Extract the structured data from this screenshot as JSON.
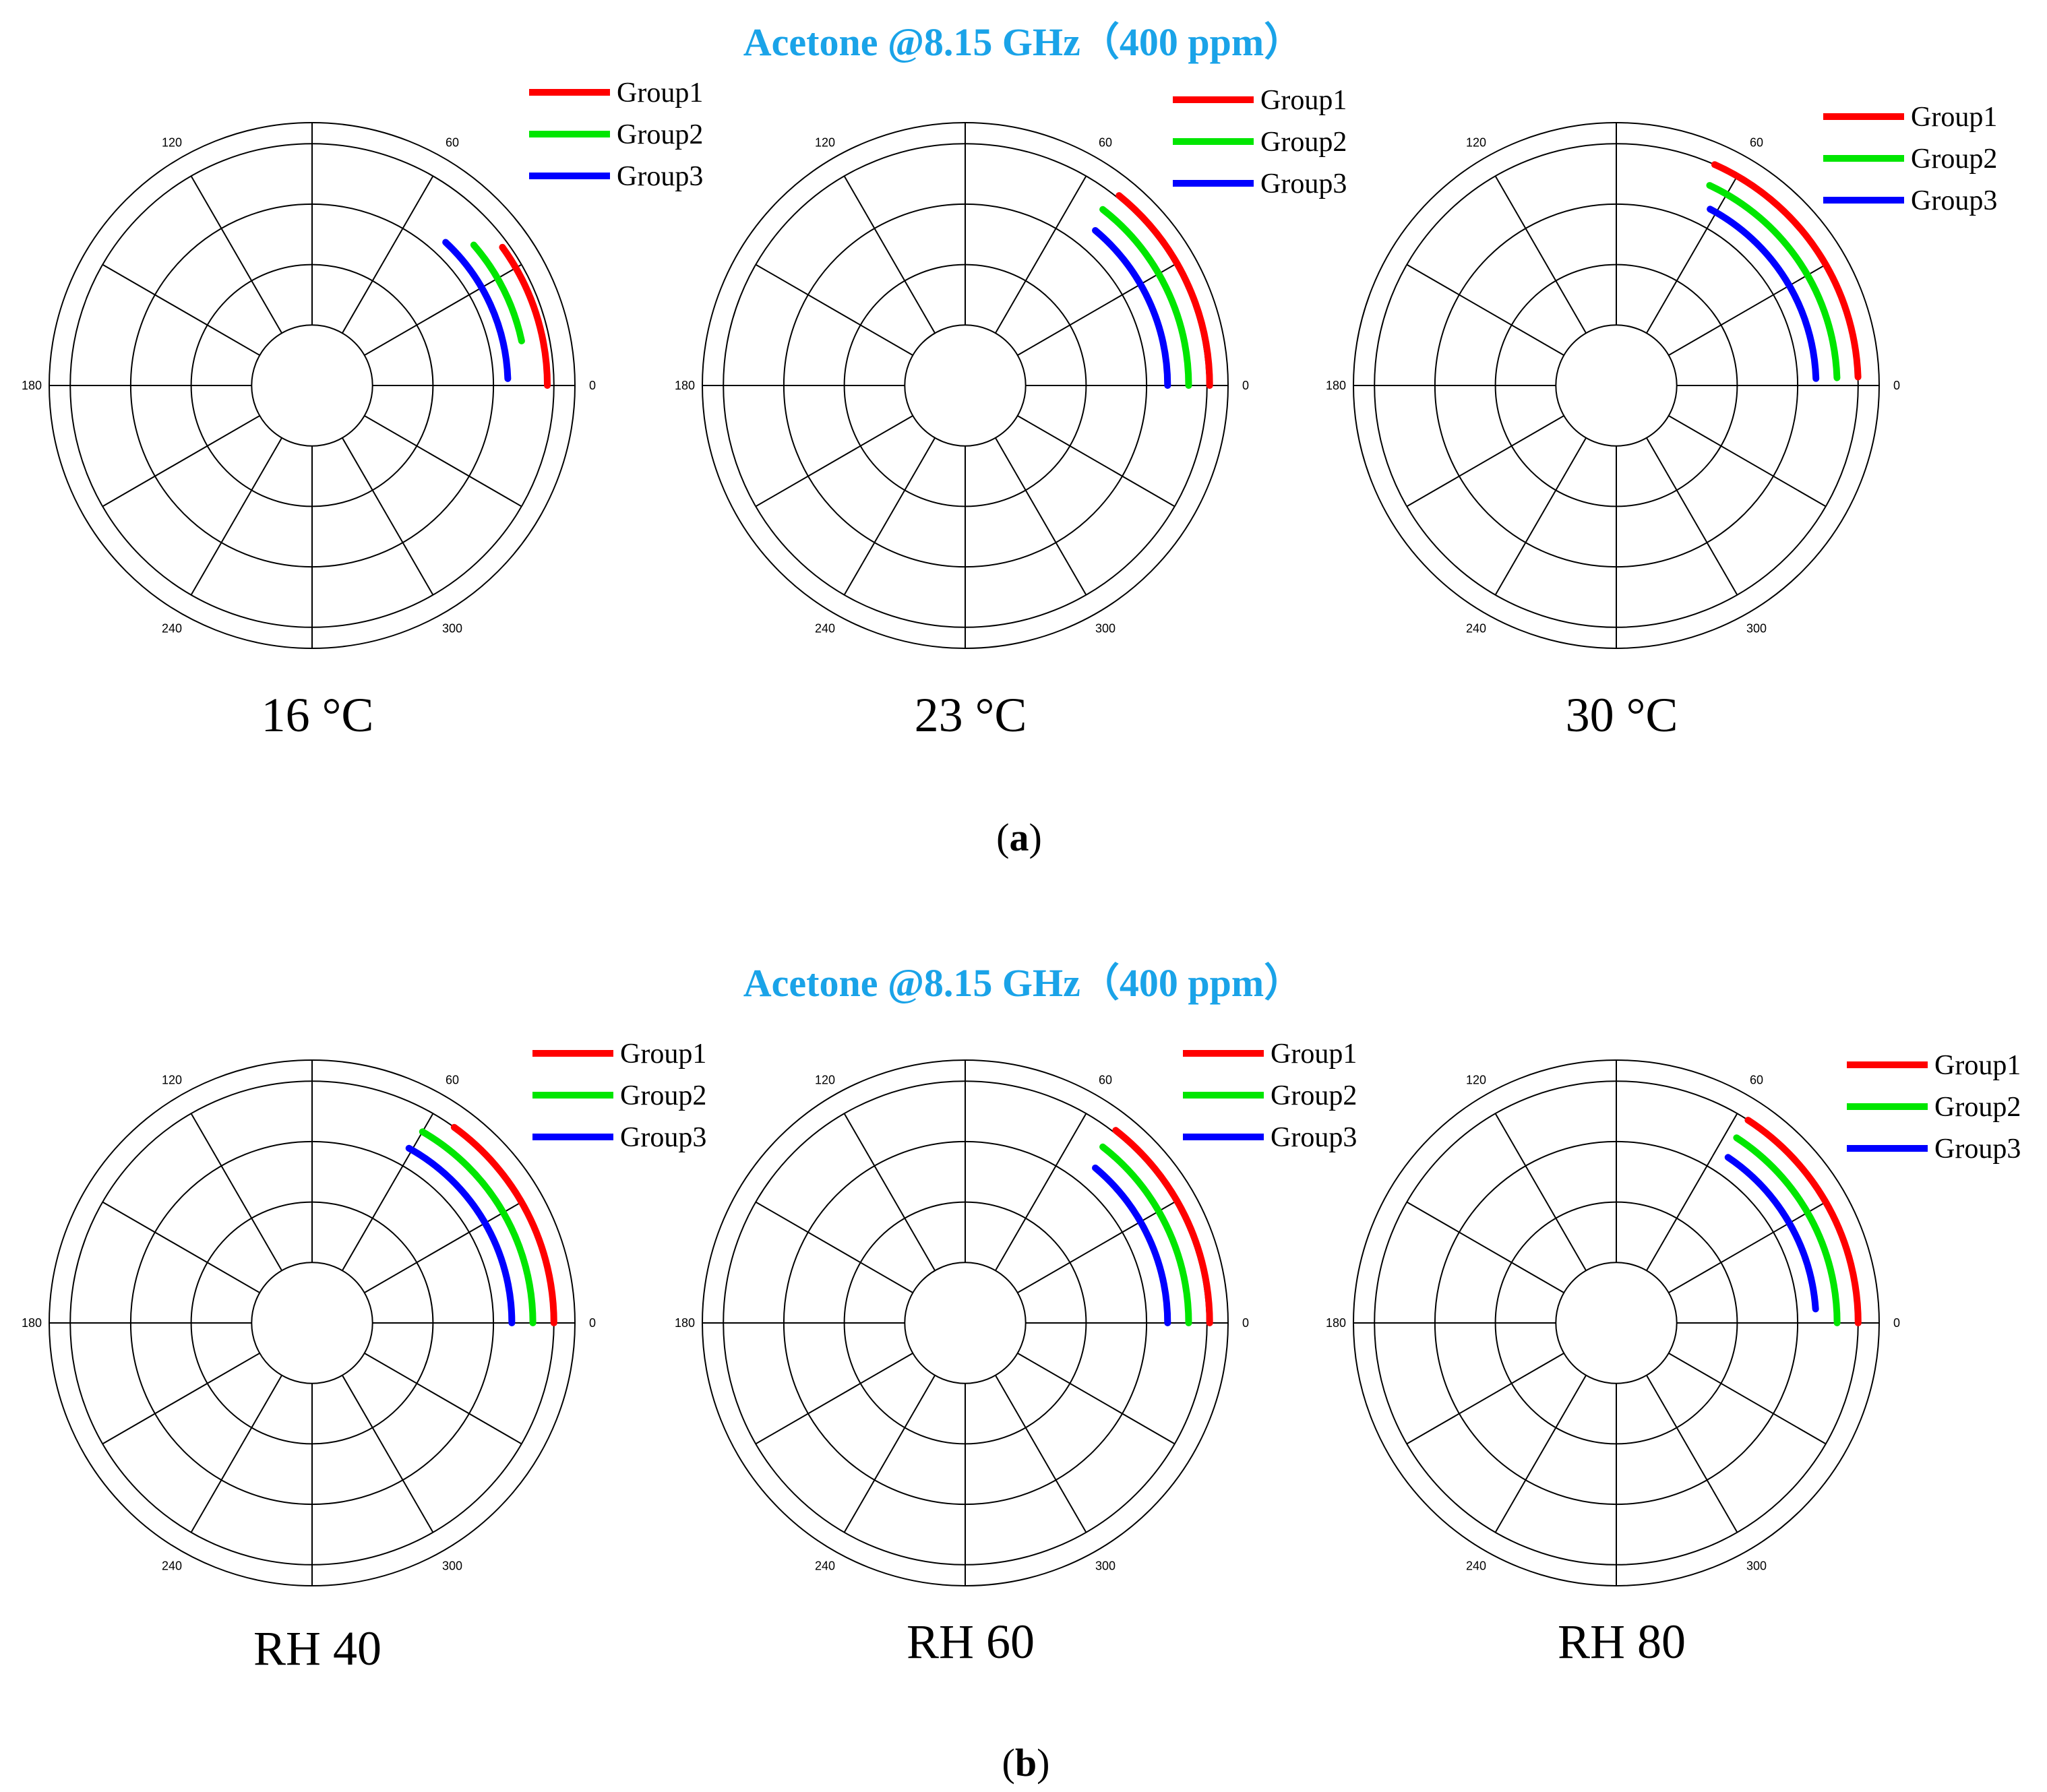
{
  "figure": {
    "title_a": "Acetone @8.15 GHz（400 ppm）",
    "title_b": "Acetone @8.15 GHz（400 ppm）",
    "caption_a": {
      "open": "(",
      "letter": "a",
      "close": ")"
    },
    "caption_b": {
      "open": "(",
      "letter": "b",
      "close": ")"
    }
  },
  "colors": {
    "group1": "#ff0000",
    "group2": "#00e600",
    "group3": "#0000ff",
    "title": "#1aa3e8",
    "grid": "#000000"
  },
  "chart_data": [
    {
      "type": "polar",
      "label": "16 °C",
      "angle_ticks": [
        "0",
        "60",
        "120",
        "180",
        "240",
        "300"
      ],
      "radial_range": [
        0,
        1
      ],
      "series": [
        {
          "name": "Group1",
          "r": 0.895,
          "theta_start": 0,
          "theta_end": 36
        },
        {
          "name": "Group2",
          "r": 0.815,
          "theta_start": 12,
          "theta_end": 41
        },
        {
          "name": "Group3",
          "r": 0.745,
          "theta_start": 2,
          "theta_end": 47
        }
      ]
    },
    {
      "type": "polar",
      "label": "23 °C",
      "angle_ticks": [
        "0",
        "60",
        "120",
        "180",
        "240",
        "300"
      ],
      "radial_range": [
        0,
        1
      ],
      "series": [
        {
          "name": "Group1",
          "r": 0.93,
          "theta_start": 0,
          "theta_end": 51
        },
        {
          "name": "Group2",
          "r": 0.85,
          "theta_start": 0,
          "theta_end": 52
        },
        {
          "name": "Group3",
          "r": 0.77,
          "theta_start": 0,
          "theta_end": 50
        }
      ]
    },
    {
      "type": "polar",
      "label": "30 °C",
      "angle_ticks": [
        "0",
        "60",
        "120",
        "180",
        "240",
        "300"
      ],
      "radial_range": [
        0,
        1
      ],
      "series": [
        {
          "name": "Group1",
          "r": 0.92,
          "theta_start": 2,
          "theta_end": 66
        },
        {
          "name": "Group2",
          "r": 0.84,
          "theta_start": 2,
          "theta_end": 65
        },
        {
          "name": "Group3",
          "r": 0.76,
          "theta_start": 2,
          "theta_end": 62
        }
      ]
    },
    {
      "type": "polar",
      "label": "RH 40",
      "angle_ticks": [
        "0",
        "60",
        "120",
        "180",
        "240",
        "300"
      ],
      "radial_range": [
        0,
        1
      ],
      "series": [
        {
          "name": "Group1",
          "r": 0.92,
          "theta_start": 0,
          "theta_end": 54
        },
        {
          "name": "Group2",
          "r": 0.84,
          "theta_start": 0,
          "theta_end": 60
        },
        {
          "name": "Group3",
          "r": 0.76,
          "theta_start": 0,
          "theta_end": 61
        }
      ]
    },
    {
      "type": "polar",
      "label": "RH 60",
      "angle_ticks": [
        "0",
        "60",
        "120",
        "180",
        "240",
        "300"
      ],
      "radial_range": [
        0,
        1
      ],
      "series": [
        {
          "name": "Group1",
          "r": 0.93,
          "theta_start": 0,
          "theta_end": 52
        },
        {
          "name": "Group2",
          "r": 0.85,
          "theta_start": 0,
          "theta_end": 52
        },
        {
          "name": "Group3",
          "r": 0.77,
          "theta_start": 0,
          "theta_end": 50
        }
      ]
    },
    {
      "type": "polar",
      "label": "RH 80",
      "angle_ticks": [
        "0",
        "60",
        "120",
        "180",
        "240",
        "300"
      ],
      "radial_range": [
        0,
        1
      ],
      "series": [
        {
          "name": "Group1",
          "r": 0.92,
          "theta_start": 0,
          "theta_end": 57
        },
        {
          "name": "Group2",
          "r": 0.84,
          "theta_start": 0,
          "theta_end": 57
        },
        {
          "name": "Group3",
          "r": 0.76,
          "theta_start": 4,
          "theta_end": 56
        }
      ]
    }
  ]
}
